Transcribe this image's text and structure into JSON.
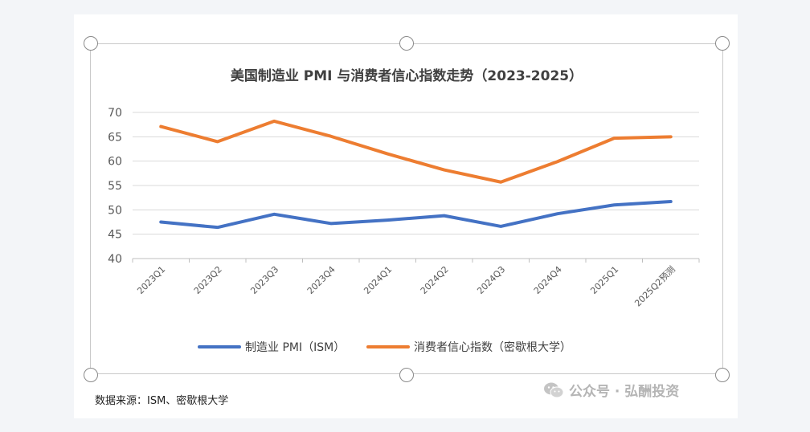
{
  "chart_data": {
    "type": "line",
    "title": "美国制造业 PMI 与消费者信心指数走势（2023-2025）",
    "categories": [
      "2023Q1",
      "2023Q2",
      "2023Q3",
      "2023Q4",
      "2024Q1",
      "2024Q2",
      "2024Q3",
      "2024Q4",
      "2025Q1",
      "2025Q2预测"
    ],
    "ylim": [
      40,
      70
    ],
    "yticks": [
      40,
      45,
      50,
      55,
      60,
      65,
      70
    ],
    "grid": true,
    "legend_position": "bottom",
    "series": [
      {
        "name": "制造业 PMI（ISM）",
        "color": "#4472c4",
        "values": [
          47.5,
          46.4,
          49.1,
          47.2,
          47.9,
          48.8,
          46.6,
          49.2,
          51.0,
          51.7
        ]
      },
      {
        "name": "消费者信心指数（密歇根大学）",
        "color": "#ed7d31",
        "values": [
          67.1,
          64.0,
          68.2,
          65.1,
          61.5,
          58.2,
          55.7,
          59.9,
          64.7,
          65.0
        ]
      }
    ]
  },
  "source": "数据来源：ISM、密歇根大学",
  "watermark": "公众号 · 弘酬投资",
  "watermark_icon": "wechat-icon"
}
